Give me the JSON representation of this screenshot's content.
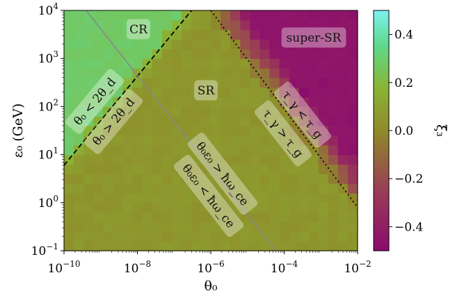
{
  "chart_data": {
    "type": "heatmap",
    "title": "",
    "xlabel": "θ₀",
    "ylabel": "ε₀ (GeV)",
    "x_scale": "log",
    "y_scale": "log",
    "xlim": [
      1e-10,
      0.01
    ],
    "ylim": [
      0.1,
      10000
    ],
    "x_ticks": [
      {
        "value": 1e-10,
        "base": "10",
        "exp": "−10"
      },
      {
        "value": 1e-08,
        "base": "10",
        "exp": "−8"
      },
      {
        "value": 1e-06,
        "base": "10",
        "exp": "−6"
      },
      {
        "value": 0.0001,
        "base": "10",
        "exp": "−4"
      },
      {
        "value": 0.01,
        "base": "10",
        "exp": "−2"
      }
    ],
    "y_ticks": [
      {
        "value": 0.1,
        "base": "10",
        "exp": "−1"
      },
      {
        "value": 1,
        "base": "10",
        "exp": "0"
      },
      {
        "value": 10,
        "base": "10",
        "exp": "1"
      },
      {
        "value": 100,
        "base": "10",
        "exp": "2"
      },
      {
        "value": 1000,
        "base": "10",
        "exp": "3"
      },
      {
        "value": 10000,
        "base": "10",
        "exp": "4"
      }
    ],
    "colorbar": {
      "label": "ξ̄₃",
      "range": [
        -0.5,
        0.5
      ],
      "ticks": [
        {
          "value": 0.4,
          "label": "0.4"
        },
        {
          "value": 0.2,
          "label": "0.2"
        },
        {
          "value": 0.0,
          "label": "0.0"
        },
        {
          "value": -0.2,
          "label": "−0.2"
        },
        {
          "value": -0.4,
          "label": "−0.4"
        }
      ],
      "colors": [
        "#8b0a6e",
        "#9a3d55",
        "#8f8a2a",
        "#8ab535",
        "#5fd88a",
        "#7ef0f0"
      ]
    },
    "grid": {
      "nx": 30,
      "ny": 25
    },
    "regions": {
      "cr_value": 0.28,
      "sr_value": 0.05,
      "super_sr_value": -0.45
    },
    "boundaries": [
      {
        "name": "theta-2theta-d",
        "style": "dashed",
        "color": "#000000",
        "x": [
          1e-10,
          3e-07
        ],
        "y": [
          6,
          10000
        ]
      },
      {
        "name": "hbar-omega-ce",
        "style": "solid",
        "color": "#888888",
        "x": [
          4e-10,
          6e-05
        ],
        "y": [
          10000,
          0.1
        ]
      },
      {
        "name": "tau-gamma-tau-g",
        "style": "dotted",
        "color": "#000000",
        "x": [
          1e-06,
          0.01
        ],
        "y": [
          10000,
          0.8
        ]
      }
    ],
    "annotations": [
      {
        "text": "CR"
      },
      {
        "text": "SR"
      },
      {
        "text": "super-SR"
      },
      {
        "text": "θ₀ < 2θ_d"
      },
      {
        "text": "θ₀ > 2θ_d"
      },
      {
        "text": "θ₀ε₀ > ħω_ce"
      },
      {
        "text": "θ₀ε₀ < ħω_ce"
      },
      {
        "text": "τ_γ < τ_g"
      },
      {
        "text": "τ_γ > τ_g"
      }
    ]
  }
}
